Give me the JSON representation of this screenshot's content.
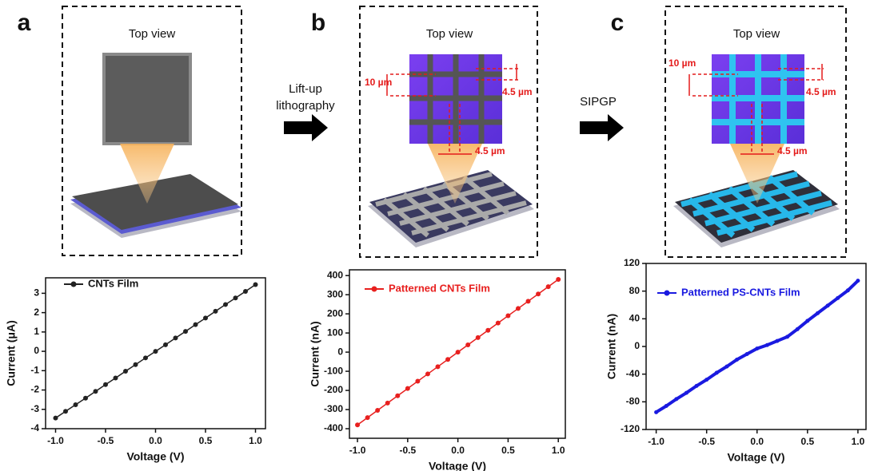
{
  "panels": [
    {
      "label": "a",
      "view": "Top view"
    },
    {
      "label": "b",
      "view": "Top view",
      "dims": [
        "10 µm",
        "4.5 µm",
        "4.5 µm"
      ]
    },
    {
      "label": "c",
      "view": "Top view",
      "dims": [
        "10 µm",
        "4.5 µm",
        "4.5 µm"
      ]
    }
  ],
  "arrows": [
    {
      "lines": [
        "Lift-up",
        "lithography"
      ]
    },
    {
      "lines": [
        "SIPGP"
      ]
    }
  ],
  "chart_data": [
    {
      "type": "line",
      "xlabel": "Voltage (V)",
      "ylabel": "Current (μA)",
      "x": [
        -1.0,
        -0.9,
        -0.8,
        -0.7,
        -0.6,
        -0.5,
        -0.4,
        -0.3,
        -0.2,
        -0.1,
        0.0,
        0.1,
        0.2,
        0.3,
        0.4,
        0.5,
        0.6,
        0.7,
        0.8,
        0.9,
        1.0
      ],
      "series": [
        {
          "name": "CNTs Film",
          "color": "#222222",
          "values": [
            -3.45,
            -3.1,
            -2.76,
            -2.42,
            -2.07,
            -1.72,
            -1.38,
            -1.03,
            -0.69,
            -0.34,
            0.0,
            0.34,
            0.69,
            1.03,
            1.38,
            1.72,
            2.07,
            2.42,
            2.76,
            3.1,
            3.45
          ]
        }
      ],
      "xlim": [
        -1.1,
        1.1
      ],
      "ylim": [
        -4,
        3.8
      ],
      "xticks": [
        {
          "value": -1.0,
          "label": "-1.0"
        },
        {
          "value": -0.5,
          "label": "-0.5"
        },
        {
          "value": 0.0,
          "label": "0.0"
        },
        {
          "value": 0.5,
          "label": "0.5"
        },
        {
          "value": 1.0,
          "label": "1.0"
        }
      ],
      "yticks": [
        -4,
        -3,
        -2,
        -1,
        0,
        1,
        2,
        3
      ]
    },
    {
      "type": "line",
      "xlabel": "Voltage (V)",
      "ylabel": "Current (nA)",
      "x": [
        -1.0,
        -0.9,
        -0.8,
        -0.7,
        -0.6,
        -0.5,
        -0.4,
        -0.3,
        -0.2,
        -0.1,
        0.0,
        0.1,
        0.2,
        0.3,
        0.4,
        0.5,
        0.6,
        0.7,
        0.8,
        0.9,
        1.0
      ],
      "series": [
        {
          "name": "Patterned CNTs Film",
          "color": "#e8201f",
          "values": [
            -380,
            -342,
            -304,
            -266,
            -228,
            -190,
            -152,
            -114,
            -76,
            -38,
            0,
            38,
            76,
            114,
            152,
            190,
            228,
            266,
            304,
            342,
            380
          ]
        }
      ],
      "xlim": [
        -1.08,
        1.07
      ],
      "ylim": [
        -450,
        430
      ],
      "xticks": [
        {
          "value": -1.0,
          "label": "-1.0"
        },
        {
          "value": -0.5,
          "label": "-0.5"
        },
        {
          "value": 0.0,
          "label": "0.0"
        },
        {
          "value": 0.5,
          "label": "0.5"
        },
        {
          "value": 1.0,
          "label": "1.0"
        }
      ],
      "yticks": [
        -400,
        -300,
        -200,
        -100,
        0,
        100,
        200,
        300,
        400
      ]
    },
    {
      "type": "line",
      "xlabel": "Voltage (V)",
      "ylabel": "Current (nA)",
      "x": [
        -1.0,
        -0.9,
        -0.8,
        -0.7,
        -0.6,
        -0.5,
        -0.4,
        -0.3,
        -0.2,
        -0.1,
        0.0,
        0.1,
        0.2,
        0.3,
        0.4,
        0.5,
        0.6,
        0.7,
        0.8,
        0.9,
        1.0
      ],
      "series": [
        {
          "name": "Patterned PS-CNTs Film",
          "color": "#1a1ae0",
          "values": [
            -95,
            -86,
            -76,
            -67,
            -57,
            -48,
            -38,
            -29,
            -19,
            -11,
            -3,
            2,
            8,
            14,
            25,
            37,
            48,
            59,
            70,
            81,
            95
          ]
        }
      ],
      "xlim": [
        -1.1,
        1.08
      ],
      "ylim": [
        -120,
        120
      ],
      "xticks": [
        {
          "value": -1.0,
          "label": "-1.0"
        },
        {
          "value": -0.5,
          "label": "-0.5"
        },
        {
          "value": 0.0,
          "label": "0.0"
        },
        {
          "value": 0.5,
          "label": "0.5"
        },
        {
          "value": 1.0,
          "label": "1.0"
        }
      ],
      "yticks": [
        -120,
        -80,
        -40,
        0,
        40,
        80,
        120
      ]
    }
  ]
}
